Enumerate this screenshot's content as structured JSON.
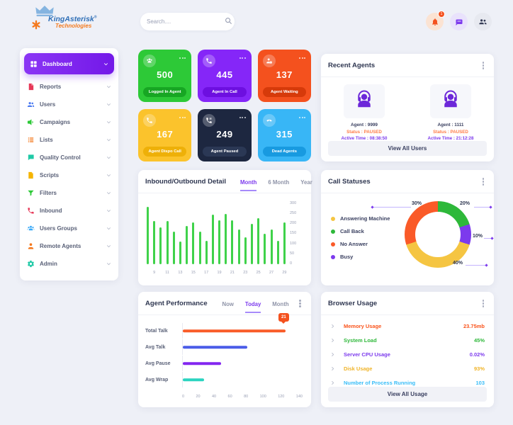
{
  "colors": {
    "accent": "#7c3aed",
    "background": "#eef0f7",
    "warning": "#f4511e"
  },
  "header": {
    "logo": {
      "title": "KingAsterisk",
      "reg": "®",
      "subtitle": "Technologies"
    },
    "search": {
      "placeholder": "Search....",
      "icon": "search-icon"
    },
    "icons": [
      {
        "name": "notification-bell-icon",
        "badge": "1"
      },
      {
        "name": "chat-icon"
      },
      {
        "name": "users-icon"
      }
    ]
  },
  "sidebar": {
    "items": [
      {
        "label": "Dashboard",
        "icon": "grid-icon",
        "color": "#ffffff",
        "active": true
      },
      {
        "label": "Reports",
        "icon": "report-icon",
        "color": "#e63757",
        "active": false
      },
      {
        "label": "Users",
        "icon": "users-icon",
        "color": "#4a7af0",
        "active": false
      },
      {
        "label": "Campaigns",
        "icon": "megaphone-icon",
        "color": "#2dc937",
        "active": false
      },
      {
        "label": "Lists",
        "icon": "list-icon",
        "color": "#f4791e",
        "active": false
      },
      {
        "label": "Quality Control",
        "icon": "chat-bubble-icon",
        "color": "#20c9a6",
        "active": false
      },
      {
        "label": "Scripts",
        "icon": "file-icon",
        "color": "#f5b400",
        "active": false
      },
      {
        "label": "Filters",
        "icon": "filter-icon",
        "color": "#2dc937",
        "active": false
      },
      {
        "label": "Inbound",
        "icon": "phone-icon",
        "color": "#e63757",
        "active": false
      },
      {
        "label": "Users Groups",
        "icon": "users-group-icon",
        "color": "#38a9f8",
        "active": false
      },
      {
        "label": "Remote Agents",
        "icon": "remote-agent-icon",
        "color": "#f4791e",
        "active": false
      },
      {
        "label": "Admin",
        "icon": "gear-icon",
        "color": "#20c9a6",
        "active": false
      }
    ]
  },
  "stat_cards": [
    {
      "value": "500",
      "label": "Logged In Agent",
      "bg": "#2dc937",
      "btn": "#17a623",
      "icon": "agents-group-icon"
    },
    {
      "value": "445",
      "label": "Agent In Call",
      "bg": "#8526f8",
      "btn": "#6d0fe0",
      "icon": "phone-call-icon"
    },
    {
      "value": "137",
      "label": "Agent Waiting",
      "bg": "#f4511e",
      "btn": "#d63a0a",
      "icon": "agent-waiting-icon"
    },
    {
      "value": "167",
      "label": "Agent Dispo Call",
      "bg": "#fbc32c",
      "btn": "#eeb008",
      "icon": "phone-dispo-icon"
    },
    {
      "value": "249",
      "label": "Agent Paused",
      "bg": "#1d2740",
      "btn": "#2b3855",
      "icon": "phone-paused-icon"
    },
    {
      "value": "315",
      "label": "Dead Agents",
      "bg": "#38b6f6",
      "btn": "#189ae0",
      "icon": "dead-agents-icon"
    }
  ],
  "recent_agents": {
    "title": "Recent Agents",
    "agents": [
      {
        "id": "Agent : 9999",
        "status": "Status : PAUSED",
        "active_time": "Active Time : 08:38:50",
        "icon": "agent-headset-icon"
      },
      {
        "id": "Agent : 1111",
        "status": "Status : PAUSED",
        "active_time": "Active Time : 21:12:28",
        "icon": "agent-headset-icon"
      }
    ],
    "view_all": "View All Users"
  },
  "chart_data": [
    {
      "id": "inbound_outbound",
      "type": "bar",
      "title": "Inbound/Outbound Detail",
      "tabs": [
        "Month",
        "6 Month",
        "Year"
      ],
      "active_tab": "Month",
      "bar_color": "#3fd24a",
      "ylim": [
        0,
        300
      ],
      "y_tick_labels": [
        "300",
        "250",
        "200",
        "150",
        "100",
        "50",
        "0"
      ],
      "x_tick_labels": [
        "9",
        "11",
        "13",
        "15",
        "17",
        "19",
        "21",
        "23",
        "25",
        "27",
        "29"
      ],
      "values": [
        280,
        210,
        180,
        210,
        160,
        110,
        185,
        205,
        160,
        115,
        240,
        215,
        245,
        215,
        170,
        130,
        195,
        225,
        150,
        170,
        115,
        205
      ],
      "grid": false,
      "legend_position": "none"
    },
    {
      "id": "call_statuses",
      "type": "pie",
      "title": "Call Statuses",
      "slices": [
        {
          "label": "Answering Machine",
          "value": 40,
          "color": "#f5c542"
        },
        {
          "label": "Call Back",
          "value": 20,
          "color": "#2eb83a"
        },
        {
          "label": "No Answer",
          "value": 30,
          "color": "#fa5a28"
        },
        {
          "label": "Busy",
          "value": 10,
          "color": "#7c3aed"
        }
      ],
      "draw_order": [
        1,
        3,
        0,
        2
      ],
      "callouts": [
        {
          "text": "30%",
          "pos": "top-left"
        },
        {
          "text": "20%",
          "pos": "top-right"
        },
        {
          "text": "10%",
          "pos": "right"
        },
        {
          "text": "40%",
          "pos": "bottom"
        }
      ],
      "legend_position": "left"
    },
    {
      "id": "agent_performance",
      "type": "bar",
      "title": "Agent Performance",
      "tabs": [
        "Now",
        "Today",
        "Month"
      ],
      "active_tab": "Today",
      "orientation": "horizontal",
      "categories": [
        "Total Talk",
        "Avg Talk",
        "Avg Pause",
        "Avg Wrap"
      ],
      "values": [
        120,
        75,
        45,
        25
      ],
      "colors": [
        "#f95c28",
        "#4a5ce8",
        "#8326f0",
        "#2bd4c0"
      ],
      "xlim": [
        0,
        140
      ],
      "x_tick_labels": [
        "0",
        "20",
        "40",
        "60",
        "80",
        "100",
        "120",
        "140"
      ],
      "tooltip": "21",
      "grid": false
    }
  ],
  "browser_usage": {
    "title": "Browser Usage",
    "rows": [
      {
        "label": "Memory Usage",
        "value": "23.75mb",
        "color": "#fa541c"
      },
      {
        "label": "System Load",
        "value": "45%",
        "color": "#2eb83a"
      },
      {
        "label": "Server CPU Usage",
        "value": "0.02%",
        "color": "#7c3aed"
      },
      {
        "label": "Disk Usage",
        "value": "93%",
        "color": "#f0b429"
      },
      {
        "label": "Number of Process Running",
        "value": "103",
        "color": "#38bdf8"
      }
    ],
    "view_all": "View All Usage"
  }
}
